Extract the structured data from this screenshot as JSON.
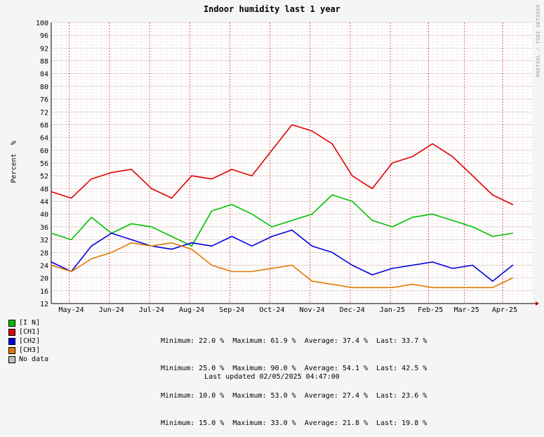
{
  "title": "Indoor humidity last 1 year",
  "ylabel": "Percent  %",
  "side_text": "RRDTOOL / TOBI OETIKER",
  "updated": "Last updated 02/05/2025 04:47:00",
  "colors": {
    "in": "#00c000",
    "ch1": "#e00000",
    "ch2": "#0000e0",
    "ch3": "#e07800",
    "nodata": "#c0c0c0",
    "grid_major": "#c00000",
    "grid_minor": "#b08080"
  },
  "legend": [
    {
      "label": "[I N]",
      "color": "#00c000",
      "stats": "Minimum: 22.0 %  Maximum: 61.9 %  Average: 37.4 %  Last: 33.7 %"
    },
    {
      "label": "[CH1]",
      "color": "#e00000",
      "stats": "Minimum: 25.0 %  Maximum: 90.0 %  Average: 54.1 %  Last: 42.5 %"
    },
    {
      "label": "[CH2]",
      "color": "#0000e0",
      "stats": "Minimum: 10.0 %  Maximum: 53.0 %  Average: 27.4 %  Last: 23.6 %"
    },
    {
      "label": "[CH3]",
      "color": "#e07800",
      "stats": "Minimum: 15.0 %  Maximum: 33.0 %  Average: 21.8 %  Last: 19.8 %"
    },
    {
      "label": "No data",
      "color": "#c0c0c0",
      "stats": ""
    }
  ],
  "chart_data": {
    "type": "line",
    "title": "Indoor humidity last 1 year",
    "ylabel": "Percent  %",
    "ylim": [
      12,
      100
    ],
    "yticks": [
      12,
      16,
      20,
      24,
      28,
      32,
      36,
      40,
      44,
      48,
      52,
      56,
      60,
      64,
      68,
      72,
      76,
      80,
      84,
      88,
      92,
      96,
      100
    ],
    "x_range": [
      0,
      23
    ],
    "xtick_labels": [
      "May-24",
      "Jun-24",
      "Jul-24",
      "Aug-24",
      "Sep-24",
      "Oct-24",
      "Nov-24",
      "Dec-24",
      "Jan-25",
      "Feb-25",
      "Mar-25",
      "Apr-25"
    ],
    "xtick_positions": [
      1.9,
      3.9,
      5.9,
      7.9,
      9.9,
      11.9,
      13.9,
      15.9,
      17.9,
      19.8,
      21.6,
      23.5
    ],
    "grid": true,
    "series": [
      {
        "name": "[I N]",
        "color": "#00c000",
        "x": [
          0,
          1,
          2,
          3,
          4,
          5,
          6,
          7,
          8,
          9,
          10,
          11,
          12,
          13,
          14,
          15,
          16,
          17,
          18,
          19,
          20,
          21,
          22,
          23
        ],
        "values": [
          34,
          32,
          39,
          34,
          37,
          36,
          33,
          30,
          41,
          43,
          40,
          36,
          38,
          40,
          46,
          44,
          38,
          36,
          39,
          40,
          38,
          36,
          33,
          34
        ]
      },
      {
        "name": "[CH1]",
        "color": "#e00000",
        "x": [
          0,
          1,
          2,
          3,
          4,
          5,
          6,
          7,
          8,
          9,
          10,
          11,
          12,
          13,
          14,
          15,
          16,
          17,
          18,
          19,
          20,
          21,
          22,
          23
        ],
        "values": [
          47,
          45,
          51,
          53,
          54,
          48,
          45,
          52,
          51,
          54,
          52,
          60,
          68,
          66,
          62,
          52,
          48,
          56,
          58,
          62,
          58,
          52,
          46,
          43
        ]
      },
      {
        "name": "[CH2]",
        "color": "#0000e0",
        "x": [
          0,
          1,
          2,
          3,
          4,
          5,
          6,
          7,
          8,
          9,
          10,
          11,
          12,
          13,
          14,
          15,
          16,
          17,
          18,
          19,
          20,
          21,
          22,
          23
        ],
        "values": [
          25,
          22,
          30,
          34,
          32,
          30,
          29,
          31,
          30,
          33,
          30,
          33,
          35,
          30,
          28,
          24,
          21,
          23,
          24,
          25,
          23,
          24,
          19,
          24
        ]
      },
      {
        "name": "[CH3]",
        "color": "#e07800",
        "x": [
          0,
          1,
          2,
          3,
          4,
          5,
          6,
          7,
          8,
          9,
          10,
          11,
          12,
          13,
          14,
          15,
          16,
          17,
          18,
          19,
          20,
          21,
          22,
          23
        ],
        "values": [
          24,
          22,
          26,
          28,
          31,
          30,
          31,
          29,
          24,
          22,
          22,
          23,
          24,
          19,
          18,
          17,
          17,
          17,
          18,
          17,
          17,
          17,
          17,
          20
        ]
      }
    ]
  }
}
